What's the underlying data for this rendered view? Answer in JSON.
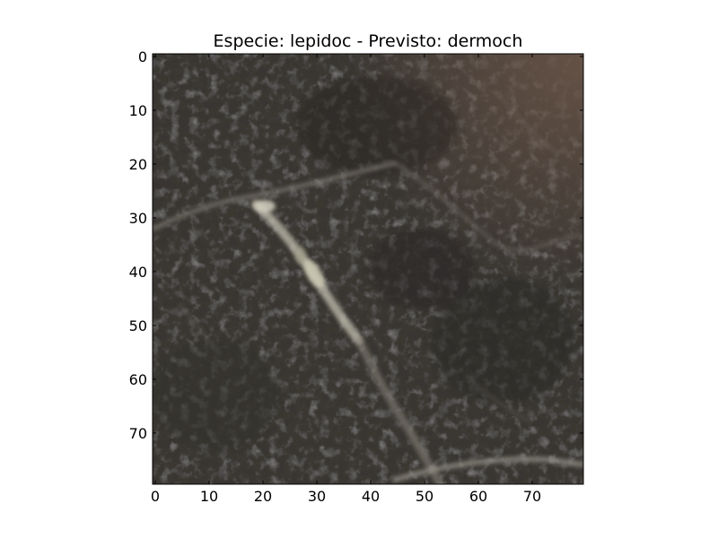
{
  "chart_data": {
    "type": "image",
    "title": "Especie: lepidoc - Previsto: dermoch",
    "xlabel": "",
    "ylabel": "",
    "xlim": [
      -0.5,
      79.5
    ],
    "ylim": [
      79.5,
      -0.5
    ],
    "y_inverted": true,
    "grid": false,
    "x_ticks": [
      0,
      10,
      20,
      30,
      40,
      50,
      60,
      70
    ],
    "y_ticks": [
      0,
      10,
      20,
      30,
      40,
      50,
      60,
      70
    ],
    "x_tick_labels": [
      "0",
      "10",
      "20",
      "30",
      "40",
      "50",
      "60",
      "70"
    ],
    "y_tick_labels": [
      "0",
      "10",
      "20",
      "30",
      "40",
      "50",
      "60",
      "70"
    ],
    "image_size": [
      80,
      80
    ],
    "colors": {
      "background": "#3a3733",
      "dark": "#2e2b28",
      "brown_corner": "#5a4a42",
      "streak": "#9a958c",
      "highlight": "#c9c6b6"
    }
  }
}
